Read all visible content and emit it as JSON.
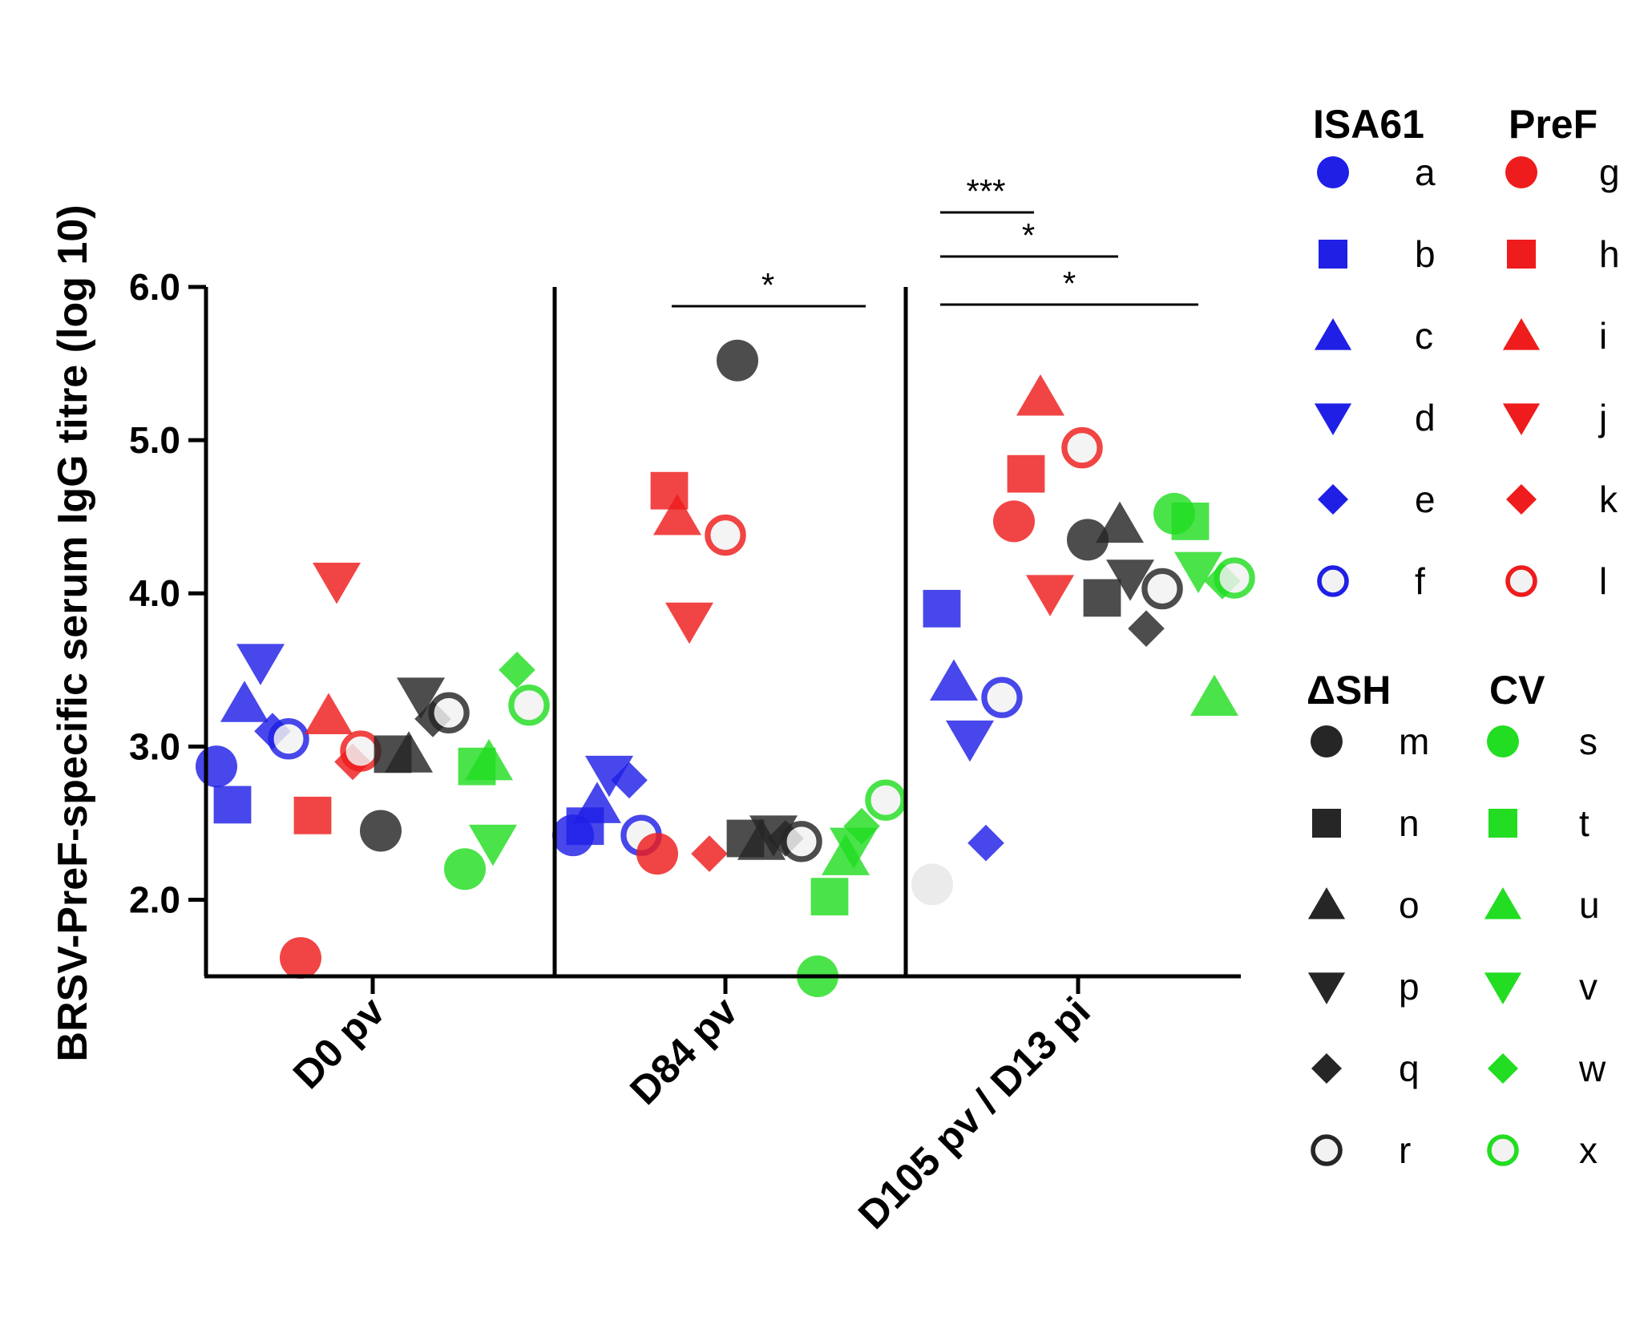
{
  "chart_data": {
    "type": "scatter",
    "ylabel": "BRSV-PreF-specific serum IgG titre  (log 10)",
    "ylim": [
      1.5,
      6.0
    ],
    "yticks": [
      2.0,
      3.0,
      4.0,
      5.0,
      6.0
    ],
    "ytick_labels": [
      "2.0",
      "3.0",
      "4.0",
      "5.0",
      "6.0"
    ],
    "categories": [
      "D0 pv",
      "D84 pv",
      "D105 pv / D13 pi"
    ],
    "groups": [
      {
        "name": "ISA61",
        "color": "#1f1fe6"
      },
      {
        "name": "PreF",
        "color": "#ee1c1c"
      },
      {
        "name": "ΔSH",
        "color": "#262626"
      },
      {
        "name": "CV",
        "color": "#22dd22"
      }
    ],
    "legend": [
      {
        "label": "a",
        "group": "ISA61",
        "shape": "circle"
      },
      {
        "label": "b",
        "group": "ISA61",
        "shape": "square"
      },
      {
        "label": "c",
        "group": "ISA61",
        "shape": "triangle-up"
      },
      {
        "label": "d",
        "group": "ISA61",
        "shape": "triangle-down"
      },
      {
        "label": "e",
        "group": "ISA61",
        "shape": "diamond"
      },
      {
        "label": "f",
        "group": "ISA61",
        "shape": "open-circle"
      },
      {
        "label": "g",
        "group": "PreF",
        "shape": "circle"
      },
      {
        "label": "h",
        "group": "PreF",
        "shape": "square"
      },
      {
        "label": "i",
        "group": "PreF",
        "shape": "triangle-up"
      },
      {
        "label": "j",
        "group": "PreF",
        "shape": "triangle-down"
      },
      {
        "label": "k",
        "group": "PreF",
        "shape": "diamond"
      },
      {
        "label": "l",
        "group": "PreF",
        "shape": "open-circle"
      },
      {
        "label": "m",
        "group": "ΔSH",
        "shape": "circle"
      },
      {
        "label": "n",
        "group": "ΔSH",
        "shape": "square"
      },
      {
        "label": "o",
        "group": "ΔSH",
        "shape": "triangle-up"
      },
      {
        "label": "p",
        "group": "ΔSH",
        "shape": "triangle-down"
      },
      {
        "label": "q",
        "group": "ΔSH",
        "shape": "diamond"
      },
      {
        "label": "r",
        "group": "ΔSH",
        "shape": "open-circle"
      },
      {
        "label": "s",
        "group": "CV",
        "shape": "circle"
      },
      {
        "label": "t",
        "group": "CV",
        "shape": "square"
      },
      {
        "label": "u",
        "group": "CV",
        "shape": "triangle-up"
      },
      {
        "label": "v",
        "group": "CV",
        "shape": "triangle-down"
      },
      {
        "label": "w",
        "group": "CV",
        "shape": "diamond"
      },
      {
        "label": "x",
        "group": "CV",
        "shape": "open-circle"
      }
    ],
    "series": [
      {
        "name": "D0 pv",
        "points": [
          {
            "id": "a",
            "y": 2.87
          },
          {
            "id": "b",
            "y": 2.62
          },
          {
            "id": "c",
            "y": 3.28
          },
          {
            "id": "d",
            "y": 3.55
          },
          {
            "id": "e",
            "y": 3.1
          },
          {
            "id": "f",
            "y": 3.05
          },
          {
            "id": "g",
            "y": 1.62
          },
          {
            "id": "h",
            "y": 2.55
          },
          {
            "id": "i",
            "y": 3.2
          },
          {
            "id": "j",
            "y": 4.08
          },
          {
            "id": "k",
            "y": 2.9
          },
          {
            "id": "l",
            "y": 2.97
          },
          {
            "id": "m",
            "y": 2.45
          },
          {
            "id": "n",
            "y": 2.95
          },
          {
            "id": "o",
            "y": 2.95
          },
          {
            "id": "p",
            "y": 3.33
          },
          {
            "id": "q",
            "y": 3.18
          },
          {
            "id": "r",
            "y": 3.22
          },
          {
            "id": "s",
            "y": 2.2
          },
          {
            "id": "t",
            "y": 2.87
          },
          {
            "id": "u",
            "y": 2.9
          },
          {
            "id": "v",
            "y": 2.37
          },
          {
            "id": "w",
            "y": 3.5
          },
          {
            "id": "x",
            "y": 3.27
          }
        ]
      },
      {
        "name": "D84 pv",
        "points": [
          {
            "id": "a",
            "y": 2.42
          },
          {
            "id": "b",
            "y": 2.48
          },
          {
            "id": "c",
            "y": 2.62
          },
          {
            "id": "d",
            "y": 2.82
          },
          {
            "id": "e",
            "y": 2.78
          },
          {
            "id": "f",
            "y": 2.42
          },
          {
            "id": "g",
            "y": 2.3
          },
          {
            "id": "h",
            "y": 4.67
          },
          {
            "id": "i",
            "y": 4.5
          },
          {
            "id": "j",
            "y": 3.82
          },
          {
            "id": "k",
            "y": 2.3
          },
          {
            "id": "l",
            "y": 4.38
          },
          {
            "id": "m",
            "y": 5.52
          },
          {
            "id": "n",
            "y": 2.4
          },
          {
            "id": "o",
            "y": 2.38
          },
          {
            "id": "p",
            "y": 2.43
          },
          {
            "id": "q",
            "y": 2.4
          },
          {
            "id": "r",
            "y": 2.38
          },
          {
            "id": "s",
            "y": 1.5
          },
          {
            "id": "t",
            "y": 2.02
          },
          {
            "id": "u",
            "y": 2.28
          },
          {
            "id": "v",
            "y": 2.35
          },
          {
            "id": "w",
            "y": 2.48
          },
          {
            "id": "x",
            "y": 2.65
          }
        ]
      },
      {
        "name": "D105 pv / D13 pi",
        "points": [
          {
            "id": "b",
            "y": 3.9
          },
          {
            "id": "c",
            "y": 3.42
          },
          {
            "id": "d",
            "y": 3.05
          },
          {
            "id": "e",
            "y": 2.37
          },
          {
            "id": "f",
            "y": 3.32
          },
          {
            "id": "g",
            "y": 4.47
          },
          {
            "id": "h",
            "y": 4.78
          },
          {
            "id": "i",
            "y": 5.28
          },
          {
            "id": "j",
            "y": 4.0
          },
          {
            "id": "l",
            "y": 4.95
          },
          {
            "id": "m",
            "y": 4.35
          },
          {
            "id": "n",
            "y": 3.97
          },
          {
            "id": "o",
            "y": 4.45
          },
          {
            "id": "p",
            "y": 4.1
          },
          {
            "id": "q",
            "y": 3.77
          },
          {
            "id": "r",
            "y": 4.03
          },
          {
            "id": "s",
            "y": 4.52
          },
          {
            "id": "t",
            "y": 4.47
          },
          {
            "id": "u",
            "y": 3.32
          },
          {
            "id": "v",
            "y": 4.15
          },
          {
            "id": "w",
            "y": 4.08
          },
          {
            "id": "x",
            "y": 4.1
          }
        ]
      }
    ],
    "significance": [
      {
        "category": "D84 pv",
        "text": "*"
      },
      {
        "category": "D105 pv / D13 pi",
        "text": "***"
      },
      {
        "category": "D105 pv / D13 pi",
        "text": "*"
      },
      {
        "category": "D105 pv / D13 pi",
        "text": "*"
      }
    ]
  }
}
